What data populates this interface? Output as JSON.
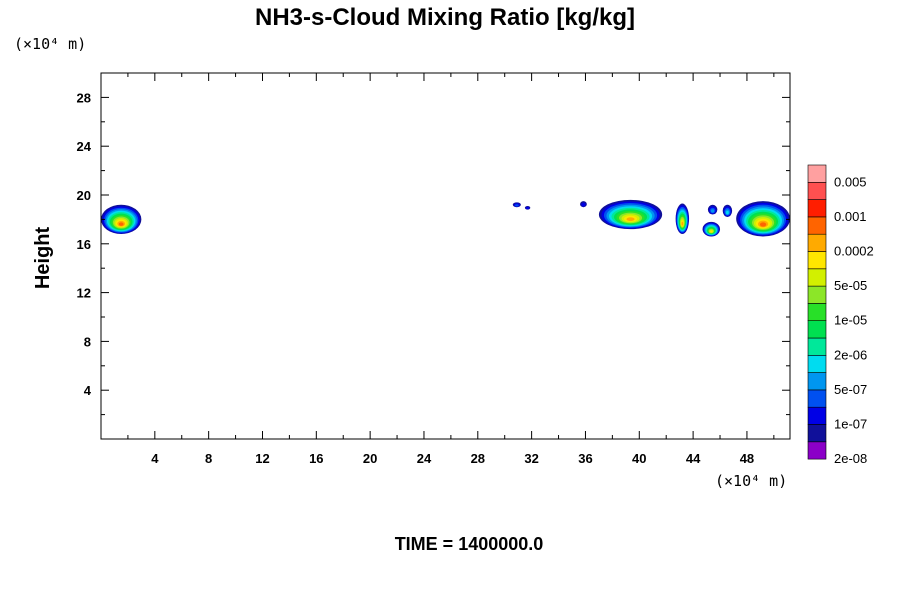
{
  "chart_data": {
    "type": "heatmap",
    "title": "NH3-s-Cloud Mixing Ratio [kg/kg]",
    "ylabel": "Height",
    "x_unit_label": "(×10⁴ m)",
    "y_unit_label": "(×10⁴ m)",
    "xlim": [
      0,
      51.2
    ],
    "ylim": [
      0,
      30
    ],
    "x_ticks": [
      4,
      8,
      12,
      16,
      20,
      24,
      28,
      32,
      36,
      40,
      44,
      48
    ],
    "y_ticks": [
      4,
      8,
      12,
      16,
      20,
      24,
      28
    ],
    "time_label": "TIME = 1400000.0",
    "colorbar": {
      "labels": [
        "0.005",
        "0.001",
        "0.0002",
        "5e-05",
        "1e-05",
        "2e-06",
        "5e-07",
        "1e-07",
        "2e-08"
      ],
      "colors": [
        "#8b00c8",
        "#10109a",
        "#0000e6",
        "#0050f0",
        "#0096f0",
        "#00dcf0",
        "#00e89a",
        "#00e050",
        "#28e028",
        "#8ce628",
        "#d2f000",
        "#ffe600",
        "#ffaa00",
        "#ff6400",
        "#ff1e00",
        "#ff5050",
        "#ffa0a0"
      ]
    },
    "clouds": [
      {
        "x": [
          0,
          3
        ],
        "y": [
          16.8,
          19.2
        ],
        "peak": 12
      },
      {
        "x": [
          30.6,
          31.2
        ],
        "y": [
          19.0,
          19.4
        ],
        "peak": 2
      },
      {
        "x": [
          31.5,
          31.9
        ],
        "y": [
          18.8,
          19.1
        ],
        "peak": 1
      },
      {
        "x": [
          35.6,
          36.1
        ],
        "y": [
          19.0,
          19.5
        ],
        "peak": 1
      },
      {
        "x": [
          37.0,
          41.7
        ],
        "y": [
          17.2,
          19.6
        ],
        "peak": 11
      },
      {
        "x": [
          42.7,
          43.7
        ],
        "y": [
          16.8,
          19.3
        ],
        "peak": 11
      },
      {
        "x": [
          44.7,
          46.0
        ],
        "y": [
          16.6,
          17.8
        ],
        "peak": 10
      },
      {
        "x": [
          45.1,
          45.8
        ],
        "y": [
          18.4,
          19.2
        ],
        "peak": 3
      },
      {
        "x": [
          46.2,
          46.9
        ],
        "y": [
          18.2,
          19.2
        ],
        "peak": 4
      },
      {
        "x": [
          47.2,
          51.2
        ],
        "y": [
          16.6,
          19.5
        ],
        "peak": 12
      }
    ]
  }
}
